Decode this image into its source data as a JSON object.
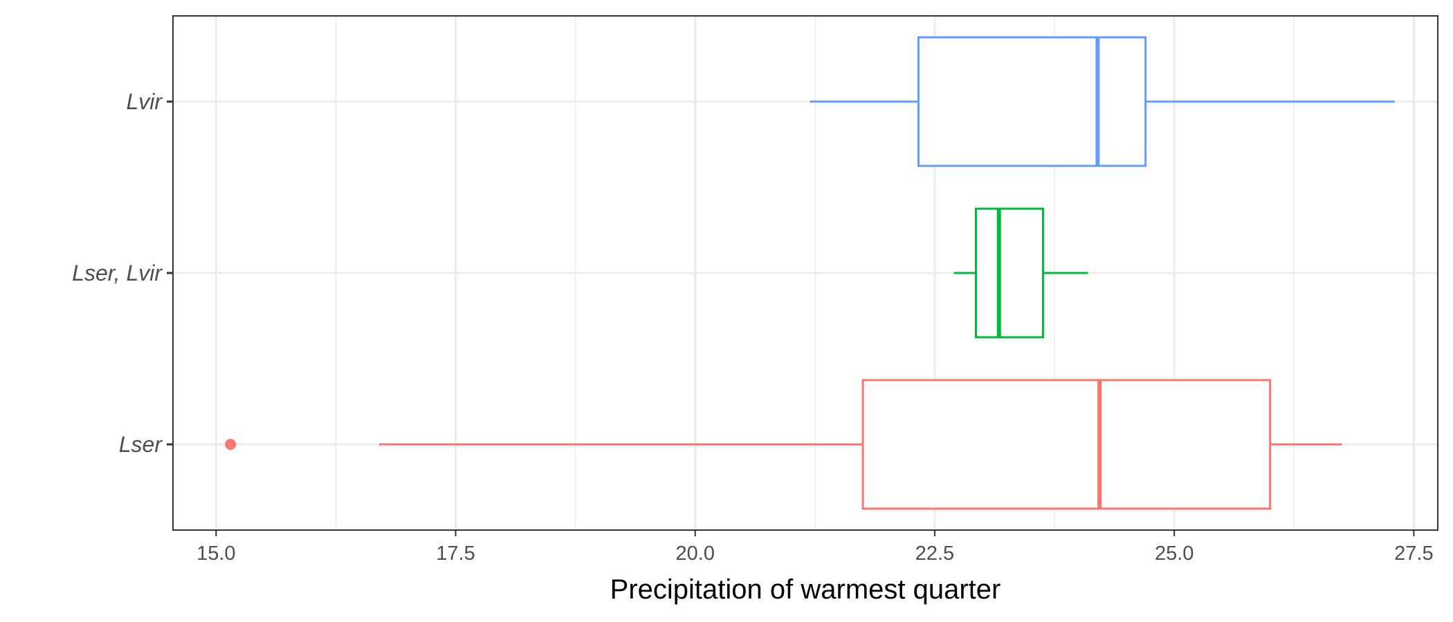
{
  "chart_data": {
    "type": "boxplot",
    "orientation": "horizontal",
    "title": "",
    "xlabel": "Precipitation of warmest quarter",
    "ylabel": "",
    "xlim": [
      14.55,
      27.75
    ],
    "x_ticks": [
      15.0,
      17.5,
      20.0,
      22.5,
      25.0,
      27.5
    ],
    "x_tick_labels": [
      "15.0",
      "17.5",
      "20.0",
      "22.5",
      "25.0",
      "27.5"
    ],
    "grid": true,
    "legend": "none",
    "series": [
      {
        "category": "Lser",
        "color": "#F8766D",
        "whisker_low": 16.7,
        "q1": 21.75,
        "median": 24.22,
        "q3": 26.0,
        "whisker_high": 26.75,
        "outliers": [
          15.15
        ]
      },
      {
        "category": "Lser, Lvir",
        "color": "#00BA38",
        "whisker_low": 22.7,
        "q1": 22.93,
        "median": 23.17,
        "q3": 23.63,
        "whisker_high": 24.1,
        "outliers": []
      },
      {
        "category": "Lvir",
        "color": "#619CFF",
        "whisker_low": 21.2,
        "q1": 22.33,
        "median": 24.2,
        "q3": 24.7,
        "whisker_high": 27.3,
        "outliers": []
      }
    ]
  }
}
